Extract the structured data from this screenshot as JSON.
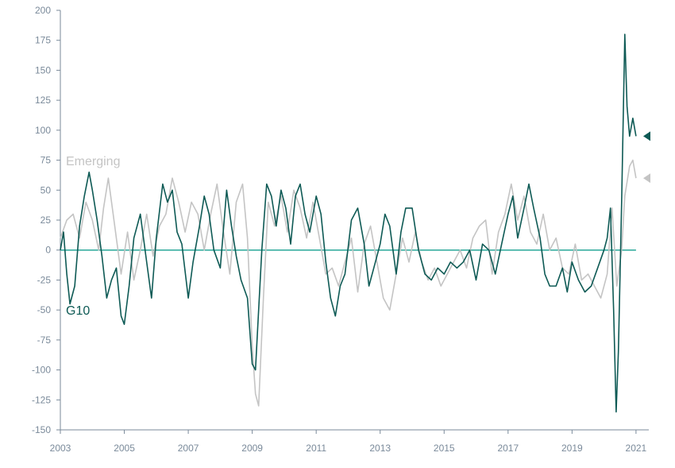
{
  "chart_data": {
    "type": "line",
    "title": "",
    "xlabel": "",
    "ylabel": "",
    "xlim": [
      2003,
      2021.4
    ],
    "ylim": [
      -150,
      200
    ],
    "x_ticks": [
      "2003",
      "2005",
      "2007",
      "2009",
      "2011",
      "2013",
      "2015",
      "2017",
      "2019",
      "2021"
    ],
    "y_ticks": [
      "200",
      "175",
      "150",
      "125",
      "100",
      "75",
      "50",
      "25",
      "0",
      "-25",
      "-50",
      "-75",
      "-100",
      "-125",
      "-150"
    ],
    "grid": false,
    "legend": "inline labels",
    "zero_line_color": "#2aa89a",
    "series": [
      {
        "name": "G10",
        "color": "#0e5a55",
        "end_marker": 95,
        "x": [
          2003.0,
          2003.1,
          2003.2,
          2003.3,
          2003.45,
          2003.6,
          2003.75,
          2003.9,
          2004.0,
          2004.15,
          2004.3,
          2004.45,
          2004.6,
          2004.75,
          2004.9,
          2005.0,
          2005.15,
          2005.3,
          2005.5,
          2005.7,
          2005.85,
          2006.0,
          2006.2,
          2006.35,
          2006.5,
          2006.65,
          2006.8,
          2007.0,
          2007.15,
          2007.35,
          2007.5,
          2007.65,
          2007.8,
          2008.0,
          2008.2,
          2008.35,
          2008.5,
          2008.65,
          2008.85,
          2009.0,
          2009.1,
          2009.2,
          2009.3,
          2009.45,
          2009.6,
          2009.75,
          2009.9,
          2010.05,
          2010.2,
          2010.35,
          2010.5,
          2010.65,
          2010.8,
          2011.0,
          2011.15,
          2011.3,
          2011.45,
          2011.6,
          2011.75,
          2011.9,
          2012.1,
          2012.3,
          2012.5,
          2012.65,
          2012.8,
          2013.0,
          2013.15,
          2013.3,
          2013.5,
          2013.65,
          2013.8,
          2014.0,
          2014.2,
          2014.4,
          2014.6,
          2014.8,
          2015.0,
          2015.2,
          2015.4,
          2015.6,
          2015.8,
          2016.0,
          2016.2,
          2016.4,
          2016.6,
          2016.8,
          2017.0,
          2017.15,
          2017.3,
          2017.5,
          2017.65,
          2017.8,
          2018.0,
          2018.15,
          2018.3,
          2018.5,
          2018.7,
          2018.85,
          2019.0,
          2019.2,
          2019.4,
          2019.6,
          2019.8,
          2020.0,
          2020.1,
          2020.2,
          2020.3,
          2020.38,
          2020.45,
          2020.55,
          2020.65,
          2020.72,
          2020.8,
          2020.9,
          2021.0
        ],
        "y": [
          0,
          15,
          -20,
          -45,
          -30,
          20,
          45,
          65,
          50,
          25,
          -5,
          -40,
          -25,
          -15,
          -55,
          -62,
          -30,
          10,
          30,
          -10,
          -40,
          10,
          55,
          40,
          50,
          15,
          5,
          -40,
          -10,
          20,
          45,
          30,
          0,
          -15,
          50,
          20,
          -5,
          -25,
          -40,
          -95,
          -100,
          -50,
          0,
          55,
          45,
          20,
          50,
          35,
          5,
          45,
          55,
          30,
          15,
          45,
          30,
          -10,
          -40,
          -55,
          -30,
          -20,
          25,
          35,
          5,
          -30,
          -15,
          5,
          30,
          20,
          -20,
          15,
          35,
          35,
          0,
          -20,
          -25,
          -15,
          -20,
          -10,
          -15,
          -10,
          0,
          -25,
          5,
          0,
          -20,
          5,
          30,
          45,
          10,
          35,
          55,
          35,
          10,
          -20,
          -30,
          -30,
          -15,
          -35,
          -10,
          -25,
          -35,
          -30,
          -15,
          0,
          10,
          35,
          -50,
          -135,
          -85,
          40,
          180,
          120,
          95,
          110,
          95
        ]
      },
      {
        "name": "Emerging",
        "color": "#c4c4c4",
        "end_marker": 60,
        "x": [
          2003.0,
          2003.2,
          2003.4,
          2003.6,
          2003.8,
          2004.0,
          2004.2,
          2004.35,
          2004.5,
          2004.7,
          2004.9,
          2005.1,
          2005.3,
          2005.5,
          2005.7,
          2005.9,
          2006.1,
          2006.3,
          2006.5,
          2006.7,
          2006.9,
          2007.1,
          2007.3,
          2007.5,
          2007.7,
          2007.9,
          2008.1,
          2008.3,
          2008.5,
          2008.7,
          2008.85,
          2009.0,
          2009.1,
          2009.2,
          2009.35,
          2009.5,
          2009.7,
          2009.9,
          2010.1,
          2010.3,
          2010.5,
          2010.7,
          2010.9,
          2011.1,
          2011.3,
          2011.5,
          2011.7,
          2011.9,
          2012.1,
          2012.3,
          2012.5,
          2012.7,
          2012.9,
          2013.1,
          2013.3,
          2013.5,
          2013.7,
          2013.9,
          2014.1,
          2014.3,
          2014.5,
          2014.7,
          2014.9,
          2015.1,
          2015.3,
          2015.5,
          2015.7,
          2015.9,
          2016.1,
          2016.3,
          2016.5,
          2016.7,
          2016.9,
          2017.1,
          2017.3,
          2017.5,
          2017.7,
          2017.9,
          2018.1,
          2018.3,
          2018.5,
          2018.7,
          2018.9,
          2019.1,
          2019.3,
          2019.5,
          2019.7,
          2019.9,
          2020.1,
          2020.25,
          2020.4,
          2020.55,
          2020.65,
          2020.8,
          2020.9,
          2021.0
        ],
        "y": [
          10,
          25,
          30,
          10,
          40,
          25,
          0,
          35,
          60,
          20,
          -20,
          15,
          -25,
          0,
          30,
          -5,
          20,
          30,
          60,
          40,
          15,
          40,
          30,
          0,
          30,
          55,
          15,
          -20,
          40,
          55,
          10,
          -80,
          -120,
          -130,
          -40,
          40,
          20,
          45,
          15,
          50,
          35,
          10,
          40,
          10,
          -20,
          -15,
          -30,
          -10,
          10,
          -35,
          5,
          20,
          -10,
          -40,
          -50,
          -20,
          10,
          -10,
          15,
          -10,
          -25,
          -15,
          -30,
          -20,
          -10,
          0,
          -15,
          10,
          20,
          25,
          -20,
          15,
          30,
          55,
          25,
          45,
          15,
          5,
          30,
          0,
          10,
          -15,
          -20,
          5,
          -25,
          -20,
          -30,
          -40,
          -20,
          35,
          -30,
          0,
          45,
          70,
          75,
          60
        ]
      }
    ]
  }
}
